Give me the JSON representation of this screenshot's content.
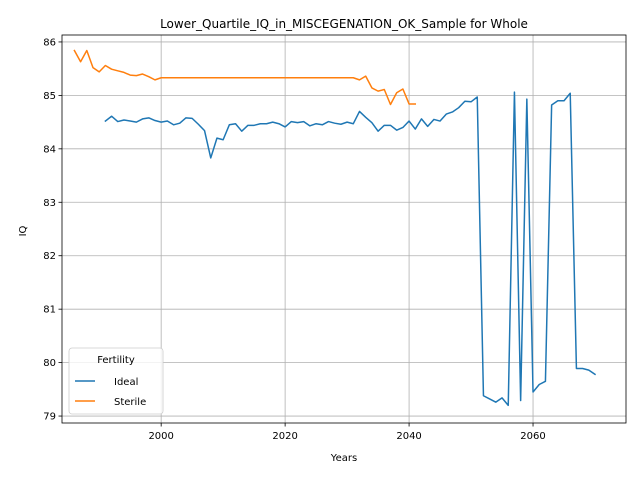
{
  "chart_data": {
    "type": "line",
    "title": "Lower_Quartile_IQ_in_MISCEGENATION_OK_Sample for Whole",
    "xlabel": "Years",
    "ylabel": "IQ",
    "xlim": [
      1984,
      2075
    ],
    "ylim": [
      78.87,
      86.13
    ],
    "xticks": [
      2000,
      2020,
      2040,
      2060
    ],
    "yticks": [
      79,
      80,
      81,
      82,
      83,
      84,
      85,
      86
    ],
    "grid": true,
    "legend": {
      "title": "Fertility",
      "location": "lower left"
    },
    "series": [
      {
        "name": "Ideal",
        "color": "#1f77b4",
        "x": [
          1991,
          1992,
          1993,
          1994,
          1995,
          1996,
          1997,
          1998,
          1999,
          2000,
          2001,
          2002,
          2003,
          2004,
          2005,
          2006,
          2007,
          2008,
          2009,
          2010,
          2011,
          2012,
          2013,
          2014,
          2015,
          2016,
          2017,
          2018,
          2019,
          2020,
          2021,
          2022,
          2023,
          2024,
          2025,
          2026,
          2027,
          2028,
          2029,
          2030,
          2031,
          2032,
          2033,
          2034,
          2035,
          2036,
          2037,
          2038,
          2039,
          2040,
          2041,
          2042,
          2043,
          2044,
          2045,
          2046,
          2047,
          2048,
          2049,
          2050,
          2051,
          2052,
          2053,
          2054,
          2055,
          2056,
          2057,
          2058,
          2059,
          2060,
          2061,
          2062,
          2063,
          2064,
          2065,
          2066,
          2067,
          2068,
          2069,
          2070
        ],
        "y": [
          84.52,
          84.61,
          84.51,
          84.54,
          84.52,
          84.5,
          84.56,
          84.58,
          84.53,
          84.5,
          84.52,
          84.45,
          84.48,
          84.58,
          84.57,
          84.46,
          84.34,
          83.83,
          84.2,
          84.17,
          84.45,
          84.47,
          84.33,
          84.44,
          84.44,
          84.47,
          84.47,
          84.5,
          84.47,
          84.41,
          84.51,
          84.49,
          84.51,
          84.43,
          84.47,
          84.45,
          84.51,
          84.48,
          84.46,
          84.5,
          84.47,
          84.7,
          84.59,
          84.49,
          84.33,
          84.44,
          84.44,
          84.35,
          84.4,
          84.52,
          84.37,
          84.56,
          84.42,
          84.55,
          84.52,
          84.65,
          84.69,
          84.77,
          84.89,
          84.88,
          84.97,
          79.38,
          79.32,
          79.26,
          79.34,
          79.2,
          85.06,
          79.29,
          84.93,
          79.45,
          79.59,
          79.65,
          84.82,
          84.9,
          84.9,
          85.04,
          79.89,
          79.89,
          79.86,
          79.78
        ]
      },
      {
        "name": "Sterile",
        "color": "#ff7f0e",
        "x": [
          1986,
          1987,
          1988,
          1989,
          1990,
          1991,
          1992,
          1993,
          1994,
          1995,
          1996,
          1997,
          1998,
          1999,
          2000,
          2001,
          2002,
          2003,
          2004,
          2005,
          2006,
          2007,
          2008,
          2009,
          2010,
          2011,
          2012,
          2013,
          2014,
          2015,
          2016,
          2017,
          2018,
          2019,
          2020,
          2021,
          2022,
          2023,
          2024,
          2025,
          2026,
          2027,
          2028,
          2029,
          2030,
          2031,
          2032,
          2033,
          2034,
          2035,
          2036,
          2037,
          2038,
          2039,
          2040,
          2041
        ],
        "y": [
          85.84,
          85.63,
          85.84,
          85.52,
          85.44,
          85.56,
          85.49,
          85.46,
          85.43,
          85.38,
          85.37,
          85.4,
          85.35,
          85.29,
          85.33,
          85.33,
          85.33,
          85.33,
          85.33,
          85.33,
          85.33,
          85.33,
          85.33,
          85.33,
          85.33,
          85.33,
          85.33,
          85.33,
          85.33,
          85.33,
          85.33,
          85.33,
          85.33,
          85.33,
          85.33,
          85.33,
          85.33,
          85.33,
          85.33,
          85.33,
          85.33,
          85.33,
          85.33,
          85.33,
          85.33,
          85.33,
          85.29,
          85.36,
          85.14,
          85.08,
          85.11,
          84.83,
          85.05,
          85.12,
          84.84,
          84.84
        ]
      }
    ]
  }
}
